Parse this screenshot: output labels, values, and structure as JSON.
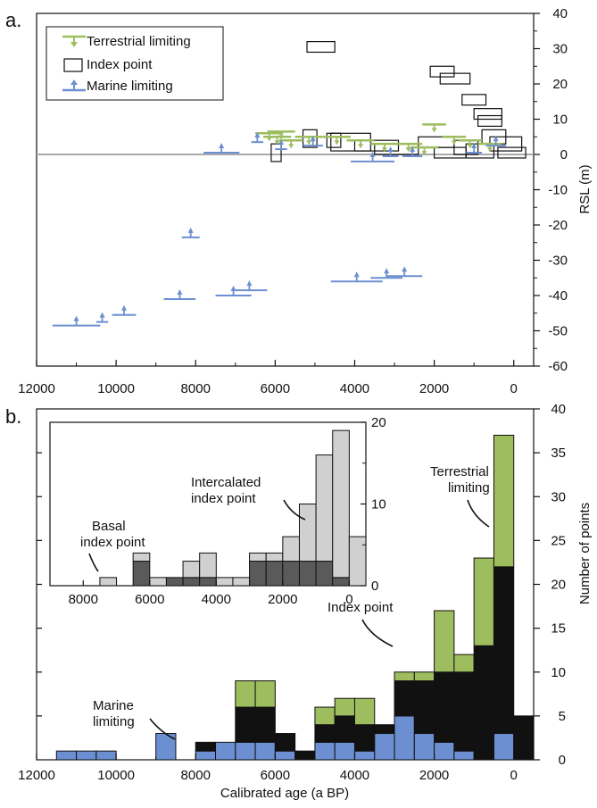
{
  "panel_a": {
    "letter": "a.",
    "ylabel": "RSL (m)",
    "y_ticks": [
      "40",
      "30",
      "20",
      "10",
      "0",
      "-10",
      "-20",
      "-30",
      "-40",
      "-50",
      "-60"
    ],
    "x_ticks": [
      "12000",
      "10000",
      "8000",
      "6000",
      "4000",
      "2000",
      "0"
    ],
    "legend": {
      "terrestrial": "Terrestrial limiting",
      "index": "Index point",
      "marine": "Marine limiting"
    }
  },
  "panel_b": {
    "letter": "b.",
    "xlabel": "Calibrated age (a BP)",
    "ylabel": "Number of points",
    "y_ticks": [
      "0",
      "5",
      "10",
      "15",
      "20",
      "25",
      "30",
      "35",
      "40"
    ],
    "x_ticks": [
      "12000",
      "10000",
      "8000",
      "6000",
      "4000",
      "2000",
      "0"
    ],
    "annotations": {
      "marine_1": "Marine",
      "marine_2": "limiting",
      "index": "Index point",
      "terr_1": "Terrestrial",
      "terr_2": "limiting"
    },
    "inset": {
      "x_ticks": [
        "8000",
        "6000",
        "4000",
        "2000",
        "0"
      ],
      "y_ticks": [
        "0",
        "10",
        "20"
      ],
      "annotations": {
        "basal_1": "Basal",
        "basal_2": "index point",
        "inter_1": "Intercalated",
        "inter_2": "index point"
      }
    }
  },
  "colors": {
    "terrestrial": "#9dbd5e",
    "index": "#111111",
    "marine": "#6b8fd0",
    "basal": "#5a5a5a",
    "intercalated": "#d0d0d0",
    "zero_line": "#aaaaaa"
  },
  "chart_data": [
    {
      "type": "scatter",
      "xlabel": "",
      "ylabel": "RSL (m)",
      "xlim": [
        12000,
        -500
      ],
      "ylim": [
        -60,
        40
      ],
      "series": [
        {
          "name": "Index point",
          "boxes": [
            {
              "x0": 5200,
              "x1": 4500,
              "y0": 29,
              "y1": 32
            },
            {
              "x0": 2100,
              "x1": 1500,
              "y0": 22,
              "y1": 25
            },
            {
              "x0": 1850,
              "x1": 1100,
              "y0": 20,
              "y1": 23
            },
            {
              "x0": 1300,
              "x1": 700,
              "y0": 14,
              "y1": 17
            },
            {
              "x0": 1000,
              "x1": 300,
              "y0": 10,
              "y1": 13
            },
            {
              "x0": 900,
              "x1": 300,
              "y0": 8,
              "y1": 11
            },
            {
              "x0": 6100,
              "x1": 5850,
              "y0": -2,
              "y1": 3
            },
            {
              "x0": 5300,
              "x1": 4950,
              "y0": 2,
              "y1": 7
            },
            {
              "x0": 4700,
              "x1": 4350,
              "y0": 2,
              "y1": 6
            },
            {
              "x0": 4600,
              "x1": 3600,
              "y0": 1,
              "y1": 6
            },
            {
              "x0": 4000,
              "x1": 2900,
              "y0": 1,
              "y1": 4
            },
            {
              "x0": 3500,
              "x1": 2400,
              "y0": 0,
              "y1": 3
            },
            {
              "x0": 2400,
              "x1": 1500,
              "y0": 2,
              "y1": 5
            },
            {
              "x0": 2000,
              "x1": 1200,
              "y0": -1,
              "y1": 2
            },
            {
              "x0": 1500,
              "x1": 900,
              "y0": 0,
              "y1": 4
            },
            {
              "x0": 1200,
              "x1": 500,
              "y0": -1,
              "y1": 3
            },
            {
              "x0": 800,
              "x1": 200,
              "y0": 3,
              "y1": 7
            },
            {
              "x0": 600,
              "x1": -200,
              "y0": 1,
              "y1": 5
            },
            {
              "x0": 400,
              "x1": -300,
              "y0": -1,
              "y1": 2
            }
          ]
        },
        {
          "name": "Terrestrial limiting",
          "points": [
            {
              "x0": 6500,
              "x1": 5800,
              "y": 6
            },
            {
              "x0": 6300,
              "x1": 5600,
              "y": 5
            },
            {
              "x0": 6200,
              "x1": 5500,
              "y": 6.5
            },
            {
              "x0": 5900,
              "x1": 5300,
              "y": 4
            },
            {
              "x0": 5500,
              "x1": 4800,
              "y": 5
            },
            {
              "x0": 4800,
              "x1": 4100,
              "y": 5
            },
            {
              "x0": 4200,
              "x1": 3500,
              "y": 4
            },
            {
              "x0": 3600,
              "x1": 2900,
              "y": 3
            },
            {
              "x0": 3000,
              "x1": 2300,
              "y": 3
            },
            {
              "x0": 2600,
              "x1": 1900,
              "y": 2
            },
            {
              "x0": 2300,
              "x1": 1700,
              "y": 8.5
            },
            {
              "x0": 1800,
              "x1": 1200,
              "y": 5
            },
            {
              "x0": 1400,
              "x1": 800,
              "y": 4
            },
            {
              "x0": 900,
              "x1": 300,
              "y": 3
            }
          ]
        },
        {
          "name": "Marine limiting",
          "points": [
            {
              "x0": 11600,
              "x1": 10400,
              "y": -48.5
            },
            {
              "x0": 10500,
              "x1": 10200,
              "y": -47.5
            },
            {
              "x0": 10100,
              "x1": 9500,
              "y": -45.5
            },
            {
              "x0": 8350,
              "x1": 7900,
              "y": -23.5
            },
            {
              "x0": 8800,
              "x1": 8000,
              "y": -41
            },
            {
              "x0": 7500,
              "x1": 6600,
              "y": -40
            },
            {
              "x0": 7100,
              "x1": 6200,
              "y": -38.5
            },
            {
              "x0": 4600,
              "x1": 3300,
              "y": -36
            },
            {
              "x0": 3600,
              "x1": 2800,
              "y": -35
            },
            {
              "x0": 3200,
              "x1": 2300,
              "y": -34.5
            },
            {
              "x0": 7800,
              "x1": 6900,
              "y": 0.5
            },
            {
              "x0": 6600,
              "x1": 6300,
              "y": 3.5
            },
            {
              "x0": 6000,
              "x1": 5700,
              "y": 1.5
            },
            {
              "x0": 5300,
              "x1": 4800,
              "y": 2.5
            },
            {
              "x0": 4100,
              "x1": 3000,
              "y": -2
            },
            {
              "x0": 3300,
              "x1": 2900,
              "y": -0.5
            },
            {
              "x0": 2800,
              "x1": 2300,
              "y": -0.5
            },
            {
              "x0": 1200,
              "x1": 800,
              "y": 0.5
            },
            {
              "x0": 700,
              "x1": 200,
              "y": 2.5
            }
          ]
        }
      ]
    },
    {
      "type": "bar",
      "stacked": true,
      "xlabel": "Calibrated age (a BP)",
      "ylabel": "Number of points",
      "xlim": [
        12000,
        -500
      ],
      "ylim": [
        0,
        40
      ],
      "bin_width": 500,
      "bin_starts": [
        11000,
        10500,
        10000,
        8500,
        7500,
        7000,
        6500,
        6000,
        5500,
        5000,
        4500,
        4000,
        3500,
        3000,
        2500,
        2000,
        1500,
        1000,
        500,
        0,
        -500
      ],
      "series": [
        {
          "name": "Marine limiting",
          "values": [
            1,
            1,
            1,
            3,
            1,
            2,
            2,
            2,
            1,
            0,
            2,
            2,
            1,
            3,
            5,
            3,
            2,
            1,
            0,
            3,
            0
          ]
        },
        {
          "name": "Index point",
          "values": [
            0,
            0,
            0,
            0,
            1,
            0,
            4,
            4,
            2,
            1,
            2,
            3,
            3,
            1,
            4,
            6,
            8,
            9,
            13,
            19,
            5
          ]
        },
        {
          "name": "Terrestrial limiting",
          "values": [
            0,
            0,
            0,
            0,
            0,
            0,
            3,
            3,
            0,
            0,
            2,
            2,
            3,
            0,
            1,
            1,
            7,
            2,
            10,
            15,
            0
          ]
        }
      ]
    },
    {
      "type": "bar",
      "stacked": true,
      "xlabel": "",
      "ylabel": "",
      "xlim": [
        9000,
        -500
      ],
      "ylim": [
        0,
        20
      ],
      "bin_width": 500,
      "bin_starts": [
        7000,
        6000,
        5500,
        5000,
        4500,
        4000,
        3500,
        3000,
        2500,
        2000,
        1500,
        1000,
        500,
        0,
        -500
      ],
      "series": [
        {
          "name": "Basal index point",
          "values": [
            0,
            3,
            0,
            1,
            1,
            1,
            0,
            0,
            3,
            3,
            3,
            3,
            3,
            1,
            0
          ]
        },
        {
          "name": "Intercalated index point",
          "values": [
            1,
            1,
            1,
            0,
            2,
            3,
            1,
            1,
            1,
            1,
            3,
            7,
            13,
            18,
            6
          ]
        }
      ]
    }
  ]
}
